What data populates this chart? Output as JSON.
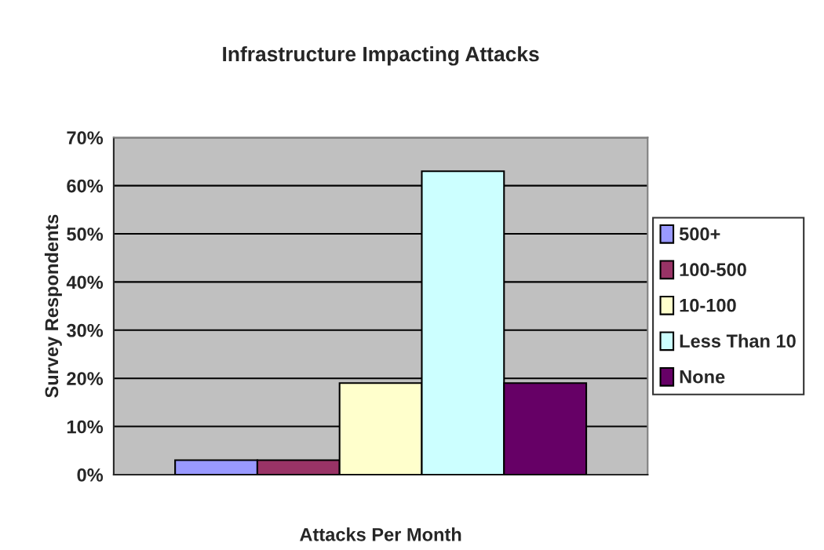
{
  "chart_data": {
    "type": "bar",
    "title": "Infrastructure Impacting Attacks",
    "xlabel": "Attacks Per Month",
    "ylabel": "Survey Respondents",
    "categories": [
      null
    ],
    "series": [
      {
        "name": "500+",
        "color": "#9999ff",
        "values": [
          0.03
        ]
      },
      {
        "name": "100-500",
        "color": "#993366",
        "values": [
          0.03
        ]
      },
      {
        "name": "10-100",
        "color": "#ffffcc",
        "values": [
          0.19
        ]
      },
      {
        "name": "Less Than 10",
        "color": "#ccffff",
        "values": [
          0.63
        ]
      },
      {
        "name": "None",
        "color": "#660066",
        "values": [
          0.19
        ]
      }
    ],
    "ylim": [
      0,
      0.7
    ],
    "yticks": [
      {
        "value": 0,
        "label": "0%"
      },
      {
        "value": 0.1,
        "label": "10%"
      },
      {
        "value": 0.2,
        "label": "20%"
      },
      {
        "value": 0.3,
        "label": "30%"
      },
      {
        "value": 0.4,
        "label": "40%"
      },
      {
        "value": 0.5,
        "label": "50%"
      },
      {
        "value": 0.6,
        "label": "60%"
      },
      {
        "value": 0.7,
        "label": "70%"
      }
    ],
    "grid": "y",
    "legend": "right"
  }
}
